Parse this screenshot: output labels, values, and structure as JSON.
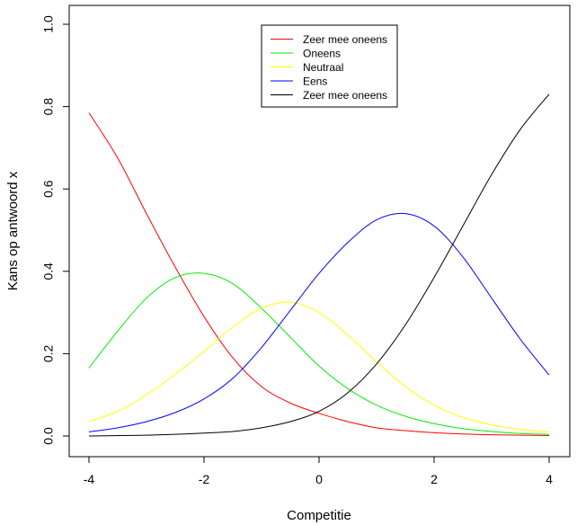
{
  "chart_data": {
    "type": "line",
    "title": "",
    "xlabel": "Competitie",
    "ylabel": "Kans op antwoord x",
    "xlim": [
      -4,
      4
    ],
    "ylim": [
      0,
      1
    ],
    "x_ticks": [
      -4,
      -2,
      0,
      2,
      4
    ],
    "x_tick_labels": [
      "-4",
      "-2",
      "0",
      "2",
      "4"
    ],
    "y_ticks": [
      0,
      0.2,
      0.4,
      0.6,
      0.8,
      1
    ],
    "y_tick_labels": [
      "0.0",
      "0.2",
      "0.4",
      "0.6",
      "0.8",
      "1.0"
    ],
    "grid": false,
    "legend_position": "top-center",
    "x": [
      -4,
      -3.5,
      -3,
      -2.5,
      -2,
      -1.5,
      -1,
      -0.5,
      0,
      0.5,
      1,
      1.5,
      2,
      2.5,
      3,
      3.5,
      4
    ],
    "series": [
      {
        "name": "Zeer mee oneens",
        "color": "#ff0000",
        "values": [
          0.785,
          0.675,
          0.54,
          0.41,
          0.29,
          0.19,
          0.12,
          0.08,
          0.055,
          0.035,
          0.02,
          0.013,
          0.008,
          0.005,
          0.003,
          0.002,
          0.001
        ]
      },
      {
        "name": "Oneens",
        "color": "#00ee00",
        "values": [
          0.165,
          0.255,
          0.335,
          0.385,
          0.395,
          0.37,
          0.31,
          0.24,
          0.17,
          0.115,
          0.075,
          0.048,
          0.03,
          0.018,
          0.011,
          0.006,
          0.004
        ]
      },
      {
        "name": "Neutraal",
        "color": "#ffff00",
        "values": [
          0.035,
          0.06,
          0.1,
          0.15,
          0.205,
          0.265,
          0.31,
          0.325,
          0.3,
          0.245,
          0.18,
          0.12,
          0.075,
          0.045,
          0.027,
          0.016,
          0.01
        ]
      },
      {
        "name": "Eens",
        "color": "#0000ff",
        "values": [
          0.01,
          0.02,
          0.035,
          0.057,
          0.09,
          0.14,
          0.215,
          0.305,
          0.395,
          0.47,
          0.525,
          0.54,
          0.51,
          0.435,
          0.335,
          0.235,
          0.148
        ]
      },
      {
        "name": "Zeer mee oneens",
        "color": "#000000",
        "values": [
          0.0,
          0.001,
          0.002,
          0.004,
          0.007,
          0.011,
          0.02,
          0.035,
          0.06,
          0.105,
          0.175,
          0.27,
          0.385,
          0.51,
          0.635,
          0.745,
          0.83
        ]
      }
    ]
  }
}
